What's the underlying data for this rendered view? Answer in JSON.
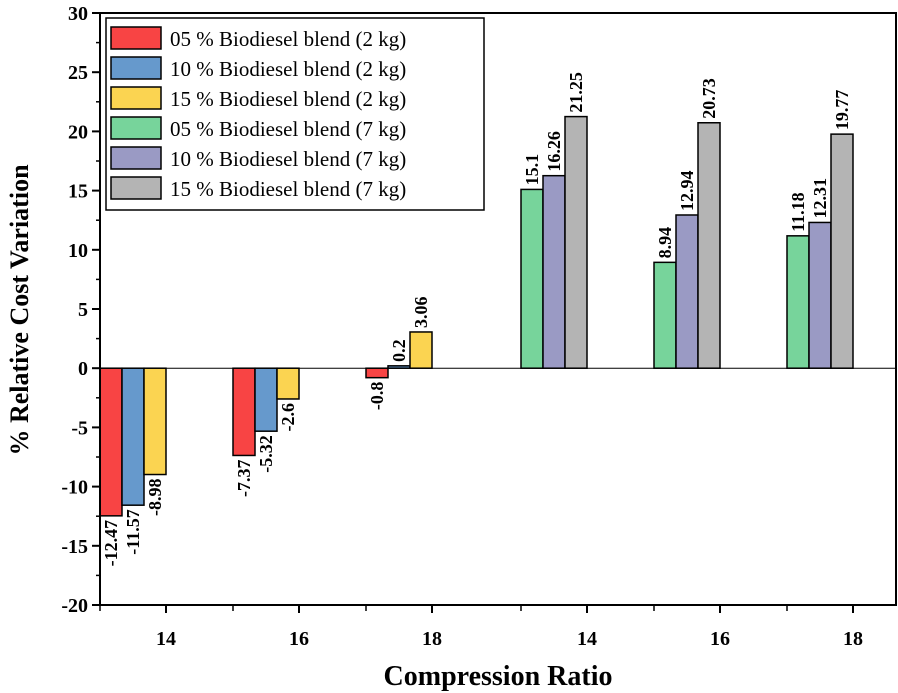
{
  "chart_data": {
    "type": "bar",
    "title": "",
    "xlabel": "Compression Ratio",
    "ylabel": "% Relative Cost Variation",
    "ylim": [
      -20,
      30
    ],
    "yticks": [
      -20,
      -15,
      -10,
      -5,
      0,
      5,
      10,
      15,
      20,
      25,
      30
    ],
    "ytick_labels": [
      "-20",
      "-15",
      "-10",
      "-5",
      "0",
      "5",
      "10",
      "15",
      "20",
      "25",
      "30"
    ],
    "categories": [
      "14",
      "16",
      "18",
      "14",
      "16",
      "18"
    ],
    "series": [
      {
        "name": "05 % Biodiesel blend (2 kg)",
        "color": "#f84444",
        "values": [
          -12.47,
          -7.37,
          -0.8,
          null,
          null,
          null
        ],
        "labels": [
          "-12.47",
          "-7.37",
          "-0.8",
          "",
          "",
          ""
        ]
      },
      {
        "name": "10 % Biodiesel blend (2 kg)",
        "color": "#6699cc",
        "values": [
          -11.57,
          -5.32,
          0.2,
          null,
          null,
          null
        ],
        "labels": [
          "-11.57",
          "-5.32",
          "0.2",
          "",
          "",
          ""
        ]
      },
      {
        "name": "15 % Biodiesel blend (2 kg)",
        "color": "#fbd451",
        "values": [
          -8.98,
          -2.6,
          3.06,
          null,
          null,
          null
        ],
        "labels": [
          "-8.98",
          "-2.6",
          "3.06",
          "",
          "",
          ""
        ]
      },
      {
        "name": "05 % Biodiesel blend (7 kg)",
        "color": "#77d49b",
        "values": [
          null,
          null,
          null,
          15.1,
          8.94,
          11.18
        ],
        "labels": [
          "",
          "",
          "",
          "15.1",
          "8.94",
          "11.18"
        ]
      },
      {
        "name": "10 % Biodiesel blend (7 kg)",
        "color": "#9a9ac4",
        "values": [
          null,
          null,
          null,
          16.26,
          12.94,
          12.31
        ],
        "labels": [
          "",
          "",
          "",
          "16.26",
          "12.94",
          "12.31"
        ]
      },
      {
        "name": "15 % Biodiesel blend (7 kg)",
        "color": "#b4b4b4",
        "values": [
          null,
          null,
          null,
          21.25,
          20.73,
          19.77
        ],
        "labels": [
          "",
          "",
          "",
          "21.25",
          "20.73",
          "19.77"
        ]
      }
    ],
    "legend_position": "top-left",
    "grid": false
  }
}
